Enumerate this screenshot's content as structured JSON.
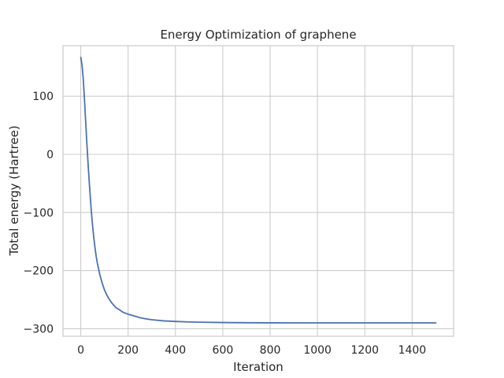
{
  "chart_data": {
    "type": "line",
    "title": "Energy Optimization of graphene",
    "xlabel": "Iteration",
    "ylabel": "Total energy (Hartree)",
    "xlim": [
      -75,
      1575
    ],
    "ylim": [
      -313,
      187
    ],
    "xticks": [
      0,
      200,
      400,
      600,
      800,
      1000,
      1200,
      1400
    ],
    "yticks": [
      100,
      0,
      -100,
      -200,
      -300
    ],
    "grid": true,
    "line_color": "#4c72b0",
    "series": [
      {
        "x": [
          0,
          5,
          10,
          15,
          20,
          25,
          30,
          35,
          40,
          45,
          50,
          55,
          60,
          65,
          70,
          80,
          90,
          100,
          110,
          120,
          130,
          140,
          150,
          165,
          180,
          200,
          225,
          250,
          275,
          300,
          350,
          400,
          450,
          500,
          600,
          700,
          800,
          900,
          1000,
          1100,
          1200,
          1300,
          1400,
          1500
        ],
        "y": [
          167,
          155,
          133,
          100,
          62,
          25,
          -10,
          -42,
          -72,
          -100,
          -123,
          -143,
          -160,
          -175,
          -187,
          -206,
          -221,
          -233,
          -242,
          -249,
          -255,
          -260,
          -264,
          -268,
          -272,
          -275,
          -278,
          -281,
          -283,
          -284.5,
          -286.5,
          -287.5,
          -288.3,
          -288.8,
          -289.4,
          -289.7,
          -289.9,
          -290,
          -290,
          -290,
          -290,
          -290,
          -290,
          -290
        ]
      }
    ]
  }
}
